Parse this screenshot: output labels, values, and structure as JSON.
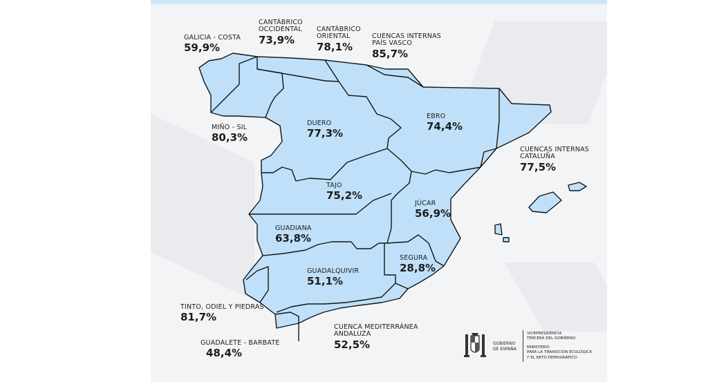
{
  "basins": [
    {
      "id": "galicia-costa",
      "name": "GALICIA - COSTA",
      "value": "59,9%"
    },
    {
      "id": "cantabrico-occidental",
      "name": "CANTÁBRICO\nOCCIDENTAL",
      "value": "73,9%"
    },
    {
      "id": "cantabrico-oriental",
      "name": "CANTÁBRICO\nORIENTAL",
      "value": "78,1%"
    },
    {
      "id": "cuencas-internas-pais-vasco",
      "name": "CUENCAS INTERNAS\nPAÍS VASCO",
      "value": "85,7%"
    },
    {
      "id": "mino-sil",
      "name": "MIÑO - SIL",
      "value": "80,3%"
    },
    {
      "id": "duero",
      "name": "DUERO",
      "value": "77,3%"
    },
    {
      "id": "ebro",
      "name": "EBRO",
      "value": "74,4%"
    },
    {
      "id": "cuencas-internas-cataluna",
      "name": "CUENCAS INTERNAS\nCATALUÑA",
      "value": "77,5%"
    },
    {
      "id": "tajo",
      "name": "TAJO",
      "value": "75,2%"
    },
    {
      "id": "jucar",
      "name": "JÚCAR",
      "value": "56,9%"
    },
    {
      "id": "guadiana",
      "name": "GUADIANA",
      "value": "63,8%"
    },
    {
      "id": "guadalquivir",
      "name": "GUADALQUIVIR",
      "value": "51,1%"
    },
    {
      "id": "segura",
      "name": "SEGURA",
      "value": "28,8%"
    },
    {
      "id": "tinto-odiel-piedras",
      "name": "TINTO, ODIEL Y PIEDRAS",
      "value": "81,7%"
    },
    {
      "id": "cuenca-mediterranea-andaluza",
      "name": "CUENCA MEDITERRÁNEA\nANDALUZA",
      "value": "52,5%"
    },
    {
      "id": "guadalete-barbate",
      "name": "GUADALETE - BARBATE",
      "value": "48,4%"
    }
  ],
  "map": {
    "colors": {
      "basin_fill": "#bfe0f8",
      "border": "#141414",
      "background": "#f3f4f6",
      "top_bar": "#cfe6f7"
    }
  },
  "footer": {
    "government": "GOBIERNO\nDE ESPAÑA",
    "vicepresidency": "VICEPRESIDENCIA\nTERCERA DEL GOBIERNO",
    "ministry": "MINISTERIO\nPARA LA TRANSICIÓN ECOLÓGICA\nY EL RETO DEMOGRÁFICO",
    "emblem": "coat-of-arms-icon"
  }
}
